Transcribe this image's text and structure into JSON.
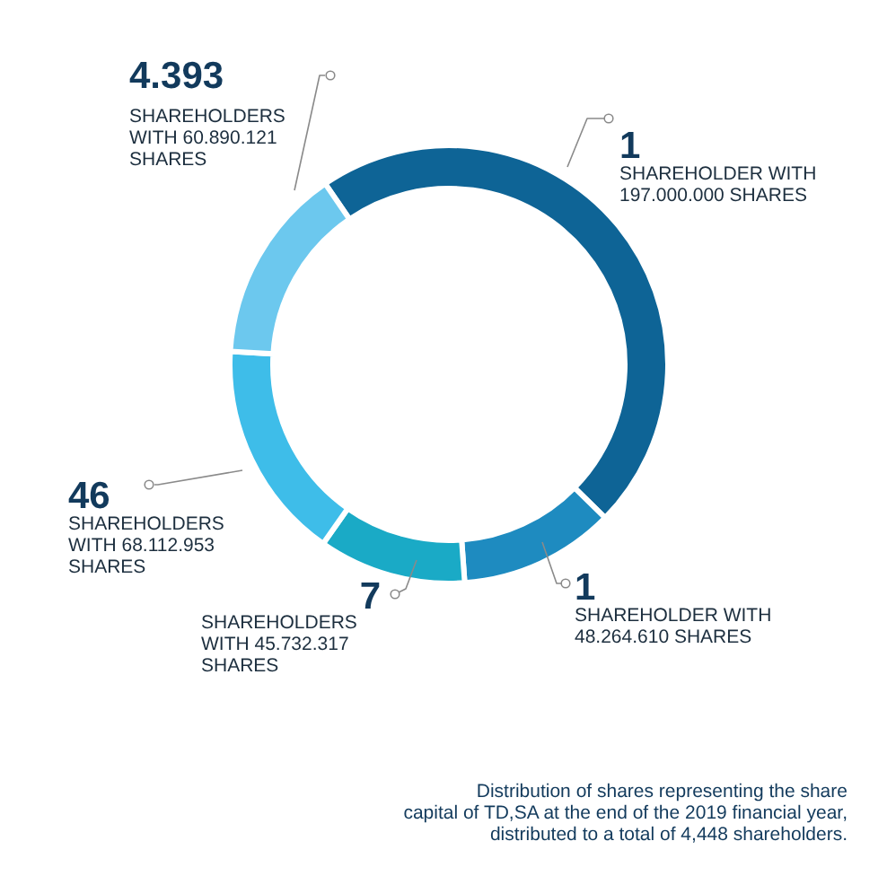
{
  "chart_data": {
    "type": "donut",
    "categories": [
      "SHAREHOLDER WITH\n197.000.000 SHARES",
      "SHAREHOLDER WITH\n48.264.610 SHARES",
      "SHAREHOLDERS\nWITH 45.732.317\nSHARES",
      "SHAREHOLDERS\nWITH 68.112.953\nSHARES",
      "SHAREHOLDERS\nWITH 60.890.121\nSHARES"
    ],
    "values": [
      197000000,
      48264610,
      45732317,
      68112953,
      60890121
    ],
    "colors": [
      "#0e6496",
      "#1e8bc0",
      "#1aaac6",
      "#3ebde9",
      "#6cc8ee"
    ],
    "annotations": [
      "1",
      "1",
      "7",
      "46",
      "4.393",
      "Distribution of shares representing the share\ncapital of TD,SA at the end of the 2019 financial year,\ndistributed to a total of 4,448 shareholders."
    ]
  }
}
